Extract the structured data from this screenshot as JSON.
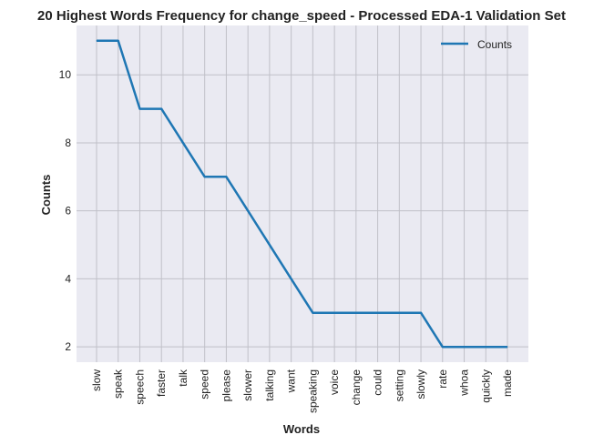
{
  "chart_data": {
    "type": "line",
    "title": "20 Highest Words Frequency for change_speed - Processed EDA-1 Validation Set",
    "xlabel": "Words",
    "ylabel": "Counts",
    "categories": [
      "slow",
      "speak",
      "speech",
      "faster",
      "talk",
      "speed",
      "please",
      "slower",
      "talking",
      "want",
      "speaking",
      "voice",
      "change",
      "could",
      "setting",
      "slowly",
      "rate",
      "whoa",
      "quickly",
      "made"
    ],
    "series": [
      {
        "name": "Counts",
        "values": [
          11,
          11,
          9,
          9,
          8,
          7,
          7,
          6,
          5,
          4,
          3,
          3,
          3,
          3,
          3,
          3,
          2,
          2,
          2,
          2
        ]
      }
    ],
    "ylim": [
      1.55,
      11.45
    ],
    "yticks": [
      "2",
      "4",
      "6",
      "8",
      "10"
    ],
    "grid": true,
    "legend_position": "top-right",
    "colors": {
      "line": "#1f77b4",
      "background": "#eaeaf2",
      "grid": "#c0c0c8"
    }
  }
}
